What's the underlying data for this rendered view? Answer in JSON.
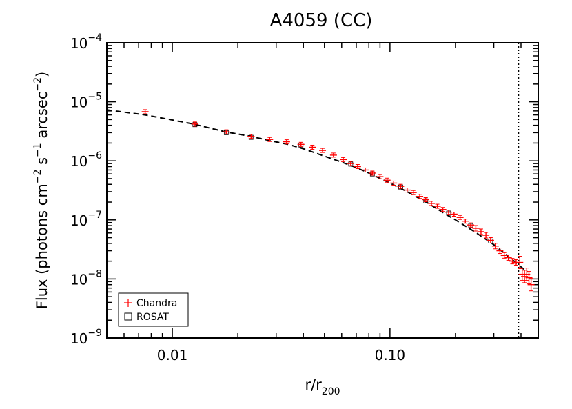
{
  "chart_data": {
    "type": "scatter",
    "title": "A4059 (CC)",
    "xlabel": {
      "base": "r/r",
      "sub": "200"
    },
    "ylabel": {
      "p1": "Flux (photons cm",
      "e1": "−2",
      "p2": " s",
      "e2": "−1",
      "p3": " arcsec",
      "e3": "−2",
      "p4": ")"
    },
    "xscale": "log",
    "yscale": "log",
    "xlim": [
      0.005,
      0.48
    ],
    "ylim": [
      1e-09,
      0.0001
    ],
    "x_ticks": [
      {
        "value": 0.01,
        "label": "0.01"
      },
      {
        "value": 0.1,
        "label": "0.10"
      }
    ],
    "y_ticks": [
      {
        "value": 1e-09,
        "base": "10",
        "exp": "−9"
      },
      {
        "value": 1e-08,
        "base": "10",
        "exp": "−8"
      },
      {
        "value": 1e-07,
        "base": "10",
        "exp": "−7"
      },
      {
        "value": 1e-06,
        "base": "10",
        "exp": "−6"
      },
      {
        "value": 1e-05,
        "base": "10",
        "exp": "−5"
      },
      {
        "value": 0.0001,
        "base": "10",
        "exp": "−4"
      }
    ],
    "vertical_line": {
      "x": 0.39,
      "style": "dotted"
    },
    "legend": {
      "position": "bottom-left",
      "entries": [
        {
          "label": "Chandra",
          "marker": "plus",
          "color": "#ff0000"
        },
        {
          "label": "ROSAT",
          "marker": "square",
          "color": "#000000"
        }
      ]
    },
    "model_curve": {
      "style": "dashed",
      "color": "#000000",
      "x": [
        0.005,
        0.0075,
        0.0125,
        0.0175,
        0.023,
        0.028,
        0.034,
        0.04,
        0.05,
        0.06,
        0.07,
        0.08,
        0.1,
        0.12,
        0.15,
        0.18,
        0.2,
        0.25,
        0.3,
        0.35,
        0.4,
        0.43
      ],
      "y": [
        7.3e-06,
        6e-06,
        4.2e-06,
        3.1e-06,
        2.6e-06,
        2.2e-06,
        1.9e-06,
        1.6e-06,
        1.2e-06,
        9.5e-07,
        7.7e-07,
        6.2e-07,
        4.2e-07,
        3e-07,
        1.9e-07,
        1.25e-07,
        1e-07,
        6e-08,
        3.8e-08,
        2.4e-08,
        1.6e-08,
        1.3e-08
      ]
    },
    "series": [
      {
        "name": "Chandra",
        "color": "#ff0000",
        "x": [
          0.0075,
          0.0127,
          0.0177,
          0.023,
          0.028,
          0.0335,
          0.039,
          0.044,
          0.049,
          0.055,
          0.061,
          0.066,
          0.071,
          0.077,
          0.083,
          0.09,
          0.097,
          0.104,
          0.112,
          0.12,
          0.128,
          0.137,
          0.146,
          0.155,
          0.165,
          0.175,
          0.186,
          0.197,
          0.21,
          0.222,
          0.235,
          0.248,
          0.262,
          0.276,
          0.29,
          0.305,
          0.32,
          0.335,
          0.35,
          0.365,
          0.38,
          0.395,
          0.405,
          0.415,
          0.425,
          0.435,
          0.445
        ],
        "y": [
          6.8e-06,
          4.2e-06,
          3.1e-06,
          2.6e-06,
          2.3e-06,
          2.1e-06,
          1.9e-06,
          1.7e-06,
          1.5e-06,
          1.25e-06,
          1.05e-06,
          9e-07,
          8e-07,
          7e-07,
          6.2e-07,
          5.4e-07,
          4.7e-07,
          4.2e-07,
          3.7e-07,
          3.2e-07,
          2.9e-07,
          2.5e-07,
          2.2e-07,
          1.9e-07,
          1.7e-07,
          1.5e-07,
          1.35e-07,
          1.25e-07,
          1.1e-07,
          9.5e-08,
          8.2e-08,
          7.2e-08,
          6.3e-08,
          5.5e-08,
          4.5e-08,
          3.6e-08,
          3e-08,
          2.5e-08,
          2.3e-08,
          2e-08,
          1.9e-08,
          1.9e-08,
          1.2e-08,
          1.1e-08,
          1.2e-08,
          1.05e-08,
          8e-09
        ]
      },
      {
        "name": "ROSAT",
        "color": "#000000",
        "x": [
          0.0075,
          0.0127,
          0.0177,
          0.023,
          0.039,
          0.066,
          0.083,
          0.112,
          0.146,
          0.186,
          0.235,
          0.29
        ],
        "y": [
          6.7e-06,
          4.1e-06,
          3e-06,
          2.5e-06,
          1.85e-06,
          8.8e-07,
          6e-07,
          3.6e-07,
          2.1e-07,
          1.3e-07,
          8e-08,
          4.4e-08
        ]
      }
    ]
  }
}
